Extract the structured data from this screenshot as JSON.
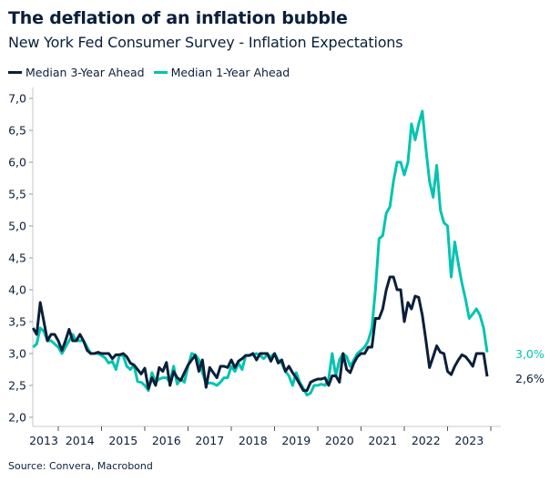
{
  "colors": {
    "three_year": "#0b1f3a",
    "one_year": "#00c4b0",
    "axis": "#c8c8c8",
    "text": "#0b1f3a"
  },
  "chart_data": {
    "type": "line",
    "title": "The deflation of an inflation bubble",
    "subtitle": "New York Fed Consumer Survey - Inflation Expectations",
    "source": "Source: Convera, Macrobond",
    "x_start": "2013-06",
    "x_frequency": "monthly",
    "x_tick_labels": [
      "2013",
      "2014",
      "2015",
      "2016",
      "2017",
      "2018",
      "2019",
      "2020",
      "2021",
      "2022",
      "2023"
    ],
    "y_tick_labels": [
      "7,0",
      "6,5",
      "6,0",
      "5,5",
      "5,0",
      "4,5",
      "4,0",
      "3,5",
      "3,0",
      "2,5",
      "2,0"
    ],
    "ylim": [
      2.0,
      7.0
    ],
    "grid": false,
    "legend_position": "top-left",
    "series": [
      {
        "name": "Median 3-Year Ahead",
        "color": "#0b1f3a",
        "end_label": "2,6%",
        "values": [
          3.4,
          3.3,
          3.8,
          3.5,
          3.2,
          3.3,
          3.3,
          3.2,
          3.05,
          3.2,
          3.38,
          3.2,
          3.2,
          3.3,
          3.2,
          3.05,
          3.0,
          3.0,
          3.02,
          3.0,
          3.0,
          3.0,
          2.92,
          2.98,
          2.98,
          3.0,
          2.95,
          2.85,
          2.82,
          2.75,
          2.68,
          2.77,
          2.45,
          2.62,
          2.5,
          2.78,
          2.72,
          2.86,
          2.5,
          2.72,
          2.62,
          2.58,
          2.7,
          2.82,
          2.9,
          2.97,
          2.72,
          2.9,
          2.47,
          2.78,
          2.7,
          2.62,
          2.8,
          2.8,
          2.78,
          2.9,
          2.78,
          2.88,
          2.92,
          2.97,
          2.97,
          3.0,
          2.9,
          3.0,
          3.0,
          3.0,
          2.88,
          3.0,
          2.85,
          2.9,
          2.72,
          2.8,
          2.7,
          2.62,
          2.52,
          2.42,
          2.42,
          2.55,
          2.58,
          2.6,
          2.6,
          2.62,
          2.5,
          2.65,
          2.65,
          2.55,
          3.0,
          2.75,
          2.7,
          2.85,
          2.95,
          3.0,
          3.0,
          3.1,
          3.1,
          3.55,
          3.55,
          3.7,
          4.0,
          4.2,
          4.2,
          4.0,
          4.0,
          3.5,
          3.8,
          3.7,
          3.9,
          3.88,
          3.6,
          3.2,
          2.78,
          2.95,
          3.12,
          3.02,
          3.0,
          2.72,
          2.67,
          2.8,
          2.9,
          2.98,
          2.95,
          2.88,
          2.8,
          3.0,
          3.0,
          3.0,
          2.64
        ]
      },
      {
        "name": "Median 1-Year Ahead",
        "color": "#00c4b0",
        "end_label": "3,0%",
        "values": [
          3.1,
          3.15,
          3.4,
          3.35,
          3.2,
          3.2,
          3.15,
          3.1,
          3.0,
          3.1,
          3.2,
          3.3,
          3.2,
          3.2,
          3.2,
          3.1,
          3.0,
          3.0,
          3.0,
          2.97,
          2.93,
          2.85,
          2.88,
          2.75,
          2.98,
          2.97,
          2.8,
          2.75,
          2.82,
          2.56,
          2.55,
          2.5,
          2.42,
          2.7,
          2.55,
          2.6,
          2.62,
          2.62,
          2.55,
          2.8,
          2.52,
          2.6,
          2.55,
          2.8,
          3.0,
          2.98,
          2.9,
          2.7,
          2.53,
          2.54,
          2.53,
          2.5,
          2.55,
          2.62,
          2.62,
          2.8,
          2.72,
          2.85,
          2.75,
          2.97,
          2.97,
          2.98,
          3.0,
          2.97,
          2.92,
          2.98,
          2.95,
          3.0,
          2.9,
          2.85,
          2.72,
          2.65,
          2.5,
          2.7,
          2.55,
          2.45,
          2.35,
          2.38,
          2.5,
          2.5,
          2.52,
          2.5,
          2.6,
          3.0,
          2.65,
          2.9,
          3.0,
          2.95,
          2.8,
          2.9,
          3.0,
          3.05,
          3.1,
          3.2,
          3.4,
          4.0,
          4.8,
          4.85,
          5.2,
          5.3,
          5.7,
          6.0,
          6.0,
          5.8,
          6.0,
          6.6,
          6.35,
          6.6,
          6.8,
          6.2,
          5.7,
          5.45,
          5.95,
          5.25,
          5.05,
          5.0,
          4.2,
          4.75,
          4.4,
          4.1,
          3.85,
          3.55,
          3.62,
          3.7,
          3.6,
          3.4,
          3.02
        ]
      }
    ]
  }
}
